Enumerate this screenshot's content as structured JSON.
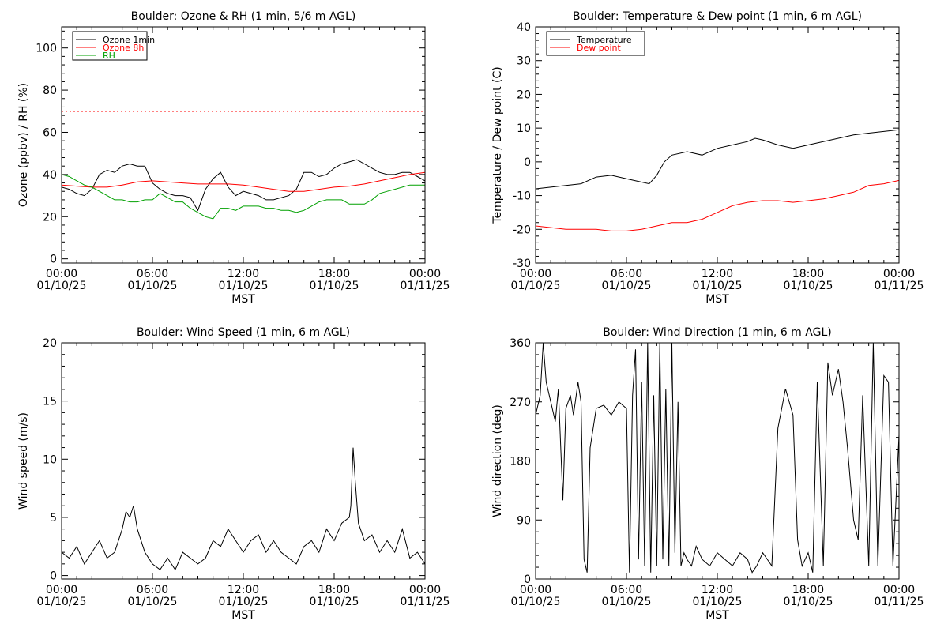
{
  "page": {
    "background": "#ffffff"
  },
  "chart_data": [
    {
      "id": "ozone-rh",
      "type": "line",
      "title": "Boulder: Ozone & RH (1 min, 5/6 m AGL)",
      "ylabel": "Ozone (ppbv) / RH (%)",
      "xlabel": "MST",
      "x_range": [
        "01/10/25 00:00",
        "01/11/25 00:00"
      ],
      "x_ticks": [
        {
          "t": 0,
          "time": "00:00",
          "date": "01/10/25"
        },
        {
          "t": 6,
          "time": "06:00",
          "date": "01/10/25"
        },
        {
          "t": 12,
          "time": "12:00",
          "date": "01/10/25"
        },
        {
          "t": 18,
          "time": "18:00",
          "date": "01/10/25"
        },
        {
          "t": 24,
          "time": "00:00",
          "date": "01/11/25"
        }
      ],
      "ylim": [
        -2,
        110
      ],
      "y_ticks": [
        0,
        20,
        40,
        60,
        80,
        100
      ],
      "grid": false,
      "legend": {
        "position": "top-left",
        "boxed": true
      },
      "reference_line": {
        "y": 70,
        "color": "#ff0000",
        "style": "dotted"
      },
      "series": [
        {
          "name": "Ozone 1min",
          "color": "#000000",
          "x": [
            0,
            0.5,
            1,
            1.5,
            2,
            2.5,
            3,
            3.5,
            4,
            4.5,
            5,
            5.5,
            6,
            6.5,
            7,
            7.5,
            8,
            8.5,
            9,
            9.5,
            10,
            10.5,
            11,
            11.5,
            12,
            12.5,
            13,
            13.5,
            14,
            14.5,
            15,
            15.5,
            16,
            16.5,
            17,
            17.5,
            18,
            18.5,
            19,
            19.5,
            20,
            20.5,
            21,
            21.5,
            22,
            22.5,
            23,
            23.5,
            24
          ],
          "y": [
            34,
            33,
            31,
            30,
            33,
            40,
            42,
            41,
            44,
            45,
            44,
            44,
            36,
            33,
            31,
            30,
            30,
            29,
            23,
            33,
            38,
            41,
            34,
            30,
            32,
            31,
            30,
            28,
            28,
            29,
            30,
            33,
            41,
            41,
            39,
            40,
            43,
            45,
            46,
            47,
            45,
            43,
            41,
            40,
            40,
            41,
            41,
            39,
            37
          ]
        },
        {
          "name": "Ozone 8h",
          "color": "#ff0000",
          "x": [
            0,
            1,
            2,
            3,
            4,
            5,
            6,
            7,
            8,
            9,
            10,
            11,
            12,
            13,
            14,
            15,
            16,
            17,
            18,
            19,
            20,
            21,
            22,
            23,
            24
          ],
          "y": [
            35,
            34.5,
            34,
            34,
            35,
            36.5,
            37,
            36.5,
            36,
            35.5,
            35.5,
            35.5,
            35,
            34,
            33,
            32,
            32,
            33,
            34,
            34.5,
            35.5,
            37,
            38.5,
            40,
            41
          ]
        },
        {
          "name": "RH",
          "color": "#00a000",
          "x": [
            0,
            0.5,
            1,
            1.5,
            2,
            2.5,
            3,
            3.5,
            4,
            4.5,
            5,
            5.5,
            6,
            6.5,
            7,
            7.5,
            8,
            8.5,
            9,
            9.5,
            10,
            10.5,
            11,
            11.5,
            12,
            12.5,
            13,
            13.5,
            14,
            14.5,
            15,
            15.5,
            16,
            16.5,
            17,
            17.5,
            18,
            18.5,
            19,
            19.5,
            20,
            20.5,
            21,
            21.5,
            22,
            22.5,
            23,
            23.5,
            24
          ],
          "y": [
            40,
            39,
            37,
            35,
            34,
            32,
            30,
            28,
            28,
            27,
            27,
            28,
            28,
            31,
            29,
            27,
            27,
            24,
            22,
            20,
            19,
            24,
            24,
            23,
            25,
            25,
            25,
            24,
            24,
            23,
            23,
            22,
            23,
            25,
            27,
            28,
            28,
            28,
            26,
            26,
            26,
            28,
            31,
            32,
            33,
            34,
            35,
            35,
            35
          ]
        }
      ]
    },
    {
      "id": "temp-dew",
      "type": "line",
      "title": "Boulder: Temperature & Dew point (1 min, 6 m AGL)",
      "ylabel": "Temperature / Dew point (C)",
      "xlabel": "MST",
      "x_range": [
        "01/10/25 00:00",
        "01/11/25 00:00"
      ],
      "x_ticks": [
        {
          "t": 0,
          "time": "00:00",
          "date": "01/10/25"
        },
        {
          "t": 6,
          "time": "06:00",
          "date": "01/10/25"
        },
        {
          "t": 12,
          "time": "12:00",
          "date": "01/10/25"
        },
        {
          "t": 18,
          "time": "18:00",
          "date": "01/10/25"
        },
        {
          "t": 24,
          "time": "00:00",
          "date": "01/11/25"
        }
      ],
      "ylim": [
        -30,
        40
      ],
      "y_ticks": [
        -30,
        -20,
        -10,
        0,
        10,
        20,
        30,
        40
      ],
      "grid": false,
      "legend": {
        "position": "top-left",
        "boxed": true
      },
      "series": [
        {
          "name": "Temperature",
          "color": "#000000",
          "x": [
            0,
            1,
            2,
            3,
            4,
            5,
            6,
            7,
            7.5,
            8,
            8.5,
            9,
            10,
            11,
            12,
            13,
            14,
            14.5,
            15,
            16,
            17,
            18,
            19,
            20,
            21,
            22,
            23,
            24
          ],
          "y": [
            -8,
            -7.5,
            -7,
            -6.5,
            -4.5,
            -4,
            -5,
            -6,
            -6.5,
            -4,
            0,
            2,
            3,
            2,
            4,
            5,
            6,
            7,
            6.5,
            5,
            4,
            5,
            6,
            7,
            8,
            8.5,
            9,
            9.5
          ]
        },
        {
          "name": "Dew point",
          "color": "#ff0000",
          "x": [
            0,
            1,
            2,
            3,
            4,
            5,
            6,
            7,
            8,
            9,
            10,
            11,
            12,
            13,
            14,
            15,
            16,
            17,
            18,
            19,
            20,
            21,
            22,
            23,
            24
          ],
          "y": [
            -19,
            -19.5,
            -20,
            -20,
            -20,
            -20.5,
            -20.5,
            -20,
            -19,
            -18,
            -18,
            -17,
            -15,
            -13,
            -12,
            -11.5,
            -11.5,
            -12,
            -11.5,
            -11,
            -10,
            -9,
            -7,
            -6.5,
            -5.5
          ]
        }
      ]
    },
    {
      "id": "wind-speed",
      "type": "line",
      "title": "Boulder: Wind Speed (1 min, 6 m AGL)",
      "ylabel": "Wind speed (m/s)",
      "xlabel": "MST",
      "x_range": [
        "01/10/25 00:00",
        "01/11/25 00:00"
      ],
      "x_ticks": [
        {
          "t": 0,
          "time": "00:00",
          "date": "01/10/25"
        },
        {
          "t": 6,
          "time": "06:00",
          "date": "01/10/25"
        },
        {
          "t": 12,
          "time": "12:00",
          "date": "01/10/25"
        },
        {
          "t": 18,
          "time": "18:00",
          "date": "01/10/25"
        },
        {
          "t": 24,
          "time": "00:00",
          "date": "01/11/25"
        }
      ],
      "ylim": [
        -0.3,
        20
      ],
      "y_ticks": [
        0,
        5,
        10,
        15,
        20
      ],
      "grid": false,
      "series": [
        {
          "name": "",
          "color": "#000000",
          "x": [
            0,
            0.5,
            1,
            1.5,
            2,
            2.5,
            3,
            3.5,
            4,
            4.25,
            4.5,
            4.75,
            5,
            5.5,
            6,
            6.5,
            7,
            7.5,
            8,
            8.5,
            9,
            9.5,
            10,
            10.5,
            11,
            11.5,
            12,
            12.5,
            13,
            13.5,
            14,
            14.5,
            15,
            15.5,
            16,
            16.5,
            17,
            17.5,
            18,
            18.5,
            19,
            19.1,
            19.25,
            19.4,
            19.6,
            20,
            20.5,
            21,
            21.5,
            22,
            22.5,
            23,
            23.5,
            24
          ],
          "y": [
            2,
            1.5,
            2.5,
            1,
            2,
            3,
            1.5,
            2,
            4,
            5.5,
            5,
            6,
            4,
            2,
            1,
            0.5,
            1.5,
            0.5,
            2,
            1.5,
            1,
            1.5,
            3,
            2.5,
            4,
            3,
            2,
            3,
            3.5,
            2,
            3,
            2,
            1.5,
            1,
            2.5,
            3,
            2,
            4,
            3,
            4.5,
            5,
            6,
            11,
            8,
            4.5,
            3,
            3.5,
            2,
            3,
            2,
            4,
            1.5,
            2,
            1
          ]
        }
      ]
    },
    {
      "id": "wind-dir",
      "type": "line",
      "title": "Boulder: Wind Direction (1 min, 6 m AGL)",
      "ylabel": "Wind direction (deg)",
      "xlabel": "MST",
      "x_range": [
        "01/10/25 00:00",
        "01/11/25 00:00"
      ],
      "x_ticks": [
        {
          "t": 0,
          "time": "00:00",
          "date": "01/10/25"
        },
        {
          "t": 6,
          "time": "06:00",
          "date": "01/10/25"
        },
        {
          "t": 12,
          "time": "12:00",
          "date": "01/10/25"
        },
        {
          "t": 18,
          "time": "18:00",
          "date": "01/10/25"
        },
        {
          "t": 24,
          "time": "00:00",
          "date": "01/11/25"
        }
      ],
      "ylim": [
        0,
        360
      ],
      "y_ticks": [
        0,
        90,
        180,
        270,
        360
      ],
      "grid": false,
      "series": [
        {
          "name": "",
          "color": "#000000",
          "x": [
            0,
            0.3,
            0.5,
            0.7,
            1,
            1.3,
            1.5,
            1.8,
            2,
            2.3,
            2.5,
            2.8,
            3,
            3.2,
            3.4,
            3.6,
            4,
            4.5,
            5,
            5.5,
            6,
            6.2,
            6.4,
            6.6,
            6.8,
            7,
            7.2,
            7.4,
            7.6,
            7.8,
            8,
            8.2,
            8.4,
            8.6,
            8.8,
            9,
            9.2,
            9.4,
            9.6,
            9.8,
            10,
            10.3,
            10.6,
            11,
            11.5,
            12,
            12.5,
            13,
            13.5,
            14,
            14.3,
            14.6,
            15,
            15.3,
            15.6,
            16,
            16.5,
            17,
            17.3,
            17.6,
            18,
            18.3,
            18.6,
            19,
            19.3,
            19.6,
            20,
            20.3,
            20.6,
            21,
            21.3,
            21.6,
            22,
            22.3,
            22.6,
            23,
            23.3,
            23.6,
            24
          ],
          "y": [
            250,
            280,
            360,
            300,
            270,
            240,
            290,
            120,
            260,
            280,
            250,
            300,
            270,
            30,
            10,
            200,
            260,
            265,
            250,
            270,
            260,
            10,
            280,
            350,
            30,
            300,
            20,
            360,
            10,
            280,
            20,
            360,
            30,
            290,
            20,
            360,
            40,
            270,
            20,
            40,
            30,
            20,
            50,
            30,
            20,
            40,
            30,
            20,
            40,
            30,
            10,
            20,
            40,
            30,
            20,
            230,
            290,
            250,
            60,
            20,
            40,
            10,
            300,
            20,
            330,
            280,
            320,
            270,
            200,
            90,
            60,
            280,
            20,
            360,
            20,
            310,
            300,
            20,
            220
          ]
        }
      ]
    }
  ]
}
